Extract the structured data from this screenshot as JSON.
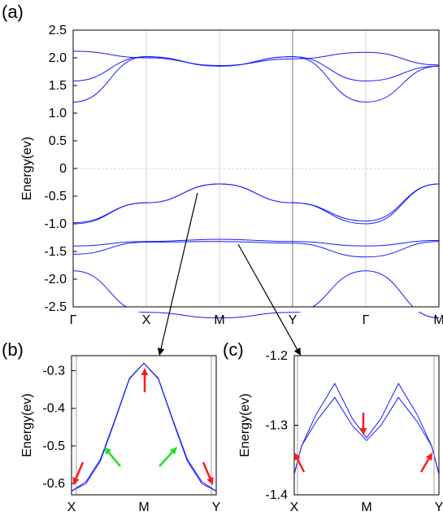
{
  "chart_data": [
    {
      "panel_label": "(a)",
      "type": "line",
      "ylabel": "Energy(ev)",
      "ylim": [
        -2.5,
        2.5
      ],
      "y_ticks": [
        "2.5",
        "2.0",
        "1.5",
        "1.0",
        "0.5",
        "0",
        "-0.5",
        "-1.0",
        "-1.5",
        "-2.0",
        "-2.5"
      ],
      "k_labels": [
        "Γ",
        "X",
        "M",
        "Y",
        "Γ",
        "M"
      ],
      "series": [
        {
          "values": [
            -0.98,
            -0.62,
            -0.28,
            -0.62,
            -0.95,
            -0.28
          ]
        },
        {
          "values": [
            -1.0,
            -0.62,
            -0.28,
            -0.62,
            -1.0,
            -0.28
          ]
        },
        {
          "values": [
            -1.4,
            -1.32,
            -1.28,
            -1.32,
            -1.4,
            -1.3
          ]
        },
        {
          "values": [
            -1.55,
            -1.33,
            -1.32,
            -1.35,
            -1.6,
            -1.32
          ]
        },
        {
          "values": [
            -1.85,
            -2.6,
            -2.7,
            -2.6,
            -1.85,
            -2.7
          ]
        },
        {
          "values": [
            1.2,
            2.02,
            1.85,
            2.02,
            1.2,
            1.85
          ]
        },
        {
          "values": [
            1.58,
            2.02,
            1.85,
            2.02,
            1.58,
            1.85
          ]
        },
        {
          "values": [
            2.12,
            2.0,
            1.86,
            1.98,
            2.1,
            1.87
          ]
        },
        {
          "values": [
            2.5,
            2.5,
            2.5,
            2.5,
            2.5,
            2.5
          ]
        }
      ]
    },
    {
      "panel_label": "(b)",
      "type": "line",
      "ylabel": "Energy(ev)",
      "ylim": [
        -0.63,
        -0.26
      ],
      "y_ticks": [
        "-0.3",
        "-0.4",
        "-0.5",
        "-0.6"
      ],
      "k_labels": [
        "X",
        "M",
        "Y"
      ],
      "series": [
        {
          "x": [
            0,
            0.1,
            0.2,
            0.3,
            0.4,
            0.5,
            0.6,
            0.7,
            0.8,
            0.9,
            1.0
          ],
          "values": [
            -0.62,
            -0.595,
            -0.535,
            -0.43,
            -0.32,
            -0.28,
            -0.32,
            -0.43,
            -0.535,
            -0.595,
            -0.62
          ]
        },
        {
          "x": [
            0,
            0.1,
            0.2,
            0.3,
            0.4,
            0.5,
            0.6,
            0.7,
            0.8,
            0.9,
            1.0
          ],
          "values": [
            -0.62,
            -0.6,
            -0.54,
            -0.433,
            -0.322,
            -0.28,
            -0.322,
            -0.433,
            -0.54,
            -0.6,
            -0.62
          ]
        }
      ]
    },
    {
      "panel_label": "(c)",
      "type": "line",
      "ylabel": "Energy(ev)",
      "ylim": [
        -1.4,
        -1.2
      ],
      "y_ticks": [
        "-1.2",
        "-1.3",
        "-1.4"
      ],
      "k_labels": [
        "X",
        "M",
        "Y"
      ],
      "series": [
        {
          "x": [
            0,
            0.05,
            0.15,
            0.28,
            0.4,
            0.5,
            0.6,
            0.72,
            0.85,
            0.95,
            1.0
          ],
          "values": [
            -1.37,
            -1.33,
            -1.285,
            -1.24,
            -1.29,
            -1.318,
            -1.29,
            -1.24,
            -1.285,
            -1.33,
            -1.37
          ]
        },
        {
          "x": [
            0,
            0.05,
            0.15,
            0.28,
            0.4,
            0.5,
            0.6,
            0.72,
            0.85,
            0.95,
            1.0
          ],
          "values": [
            -1.37,
            -1.33,
            -1.295,
            -1.26,
            -1.3,
            -1.322,
            -1.3,
            -1.26,
            -1.295,
            -1.33,
            -1.37
          ]
        }
      ]
    }
  ]
}
